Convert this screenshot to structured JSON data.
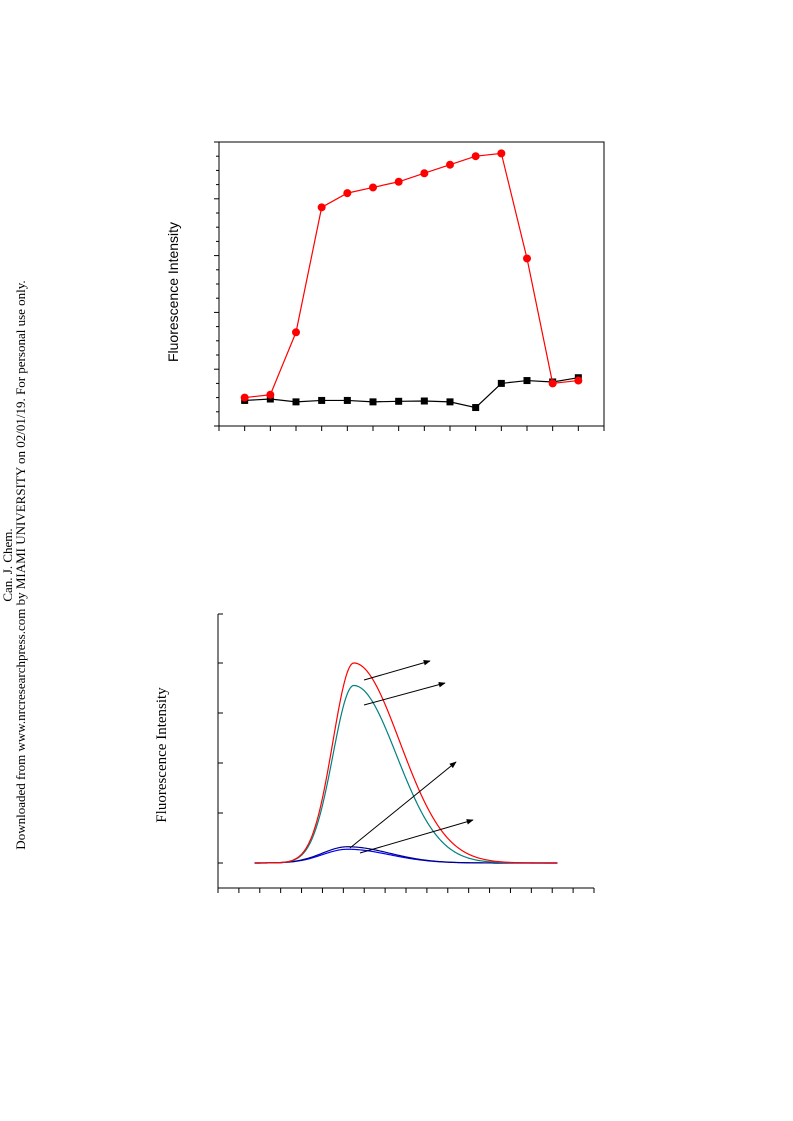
{
  "watermark": {
    "line1": "Can. J. Chem.",
    "line2": "Downloaded from www.nrcresearchpress.com by MIAMI UNIVERSITY on 02/01/19. For personal use only."
  },
  "chart_data": [
    {
      "type": "line",
      "title": "",
      "xlabel": "",
      "ylabel": "Fluorescence Intensity",
      "x": [
        1,
        2,
        3,
        4,
        5,
        6,
        7,
        8,
        9,
        10,
        11,
        12,
        13,
        14
      ],
      "xlim": [
        0,
        15
      ],
      "ylim": [
        0,
        100
      ],
      "grid": false,
      "series": [
        {
          "color": "#ff0000",
          "marker": "circle",
          "values": [
            10,
            11,
            33,
            77,
            82,
            84,
            86,
            89,
            92,
            95,
            96,
            59,
            15,
            16
          ]
        },
        {
          "color": "#000000",
          "marker": "square",
          "values": [
            9,
            9.5,
            8.5,
            9,
            9,
            8.5,
            8.7,
            8.8,
            8.5,
            6.5,
            15,
            16,
            15.5,
            17
          ]
        }
      ]
    },
    {
      "type": "line",
      "title": "",
      "xlabel": "",
      "ylabel": "Fluorescence Intensity",
      "xlim": [
        0,
        18
      ],
      "ylim": [
        0,
        110
      ],
      "grid": false,
      "series": [
        {
          "color": "#ff0000",
          "peak_x": 6.5,
          "peak_y": 80,
          "sigma_left": 1.0,
          "sigma_right": 2.2,
          "x_range": [
            1.75,
            16.25
          ]
        },
        {
          "color": "#008080",
          "peak_x": 6.5,
          "peak_y": 71,
          "sigma_left": 1.0,
          "sigma_right": 2.05,
          "x_range": [
            1.75,
            16.25
          ]
        },
        {
          "color": "#000080",
          "peak_x": 6.2,
          "peak_y": 6.5,
          "sigma_left": 1.2,
          "sigma_right": 2.0,
          "x_range": [
            1.75,
            16.25
          ]
        },
        {
          "color": "#0000ff",
          "peak_x": 6.2,
          "peak_y": 5.5,
          "sigma_left": 1.2,
          "sigma_right": 2.0,
          "x_range": [
            1.75,
            16.25
          ]
        }
      ]
    }
  ]
}
